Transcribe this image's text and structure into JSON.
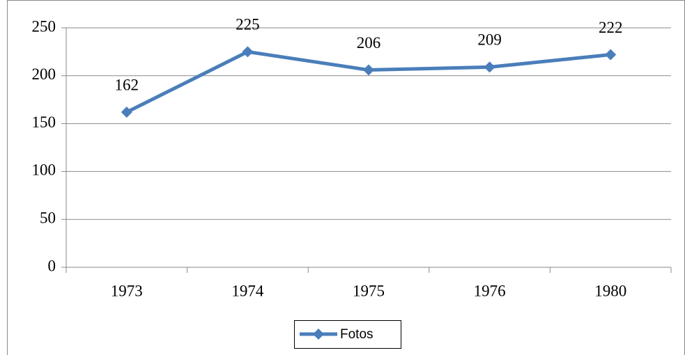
{
  "chart_data": {
    "type": "line",
    "categories": [
      "1973",
      "1974",
      "1975",
      "1976",
      "1980"
    ],
    "series": [
      {
        "name": "Fotos",
        "color": "#4a7ebb",
        "values": [
          162,
          225,
          206,
          209,
          222
        ]
      }
    ],
    "ylim": [
      0,
      250
    ],
    "yticks": [
      0,
      50,
      100,
      150,
      200,
      250
    ],
    "grid": true,
    "legend": "bottom"
  }
}
